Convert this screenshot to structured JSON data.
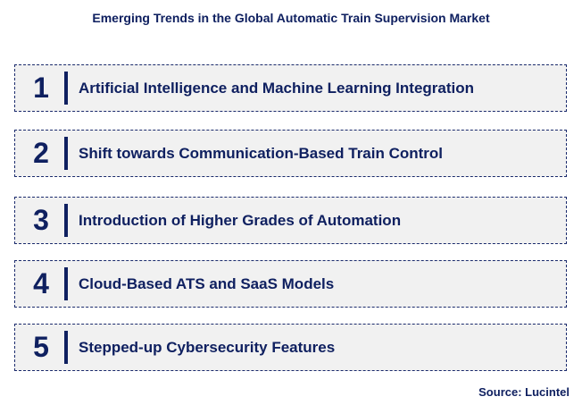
{
  "title": "Emerging Trends in the Global Automatic Train Supervision Market",
  "items": [
    {
      "number": "1",
      "label": "Artificial Intelligence and Machine Learning Integration"
    },
    {
      "number": "2",
      "label": "Shift towards Communication-Based Train Control"
    },
    {
      "number": "3",
      "label": "Introduction of Higher Grades of Automation"
    },
    {
      "number": "4",
      "label": "Cloud-Based ATS and SaaS Models"
    },
    {
      "number": "5",
      "label": "Stepped-up Cybersecurity Features"
    }
  ],
  "source": "Source: Lucintel",
  "colors": {
    "text": "#0f2060",
    "box_background": "#f1f1f1"
  }
}
